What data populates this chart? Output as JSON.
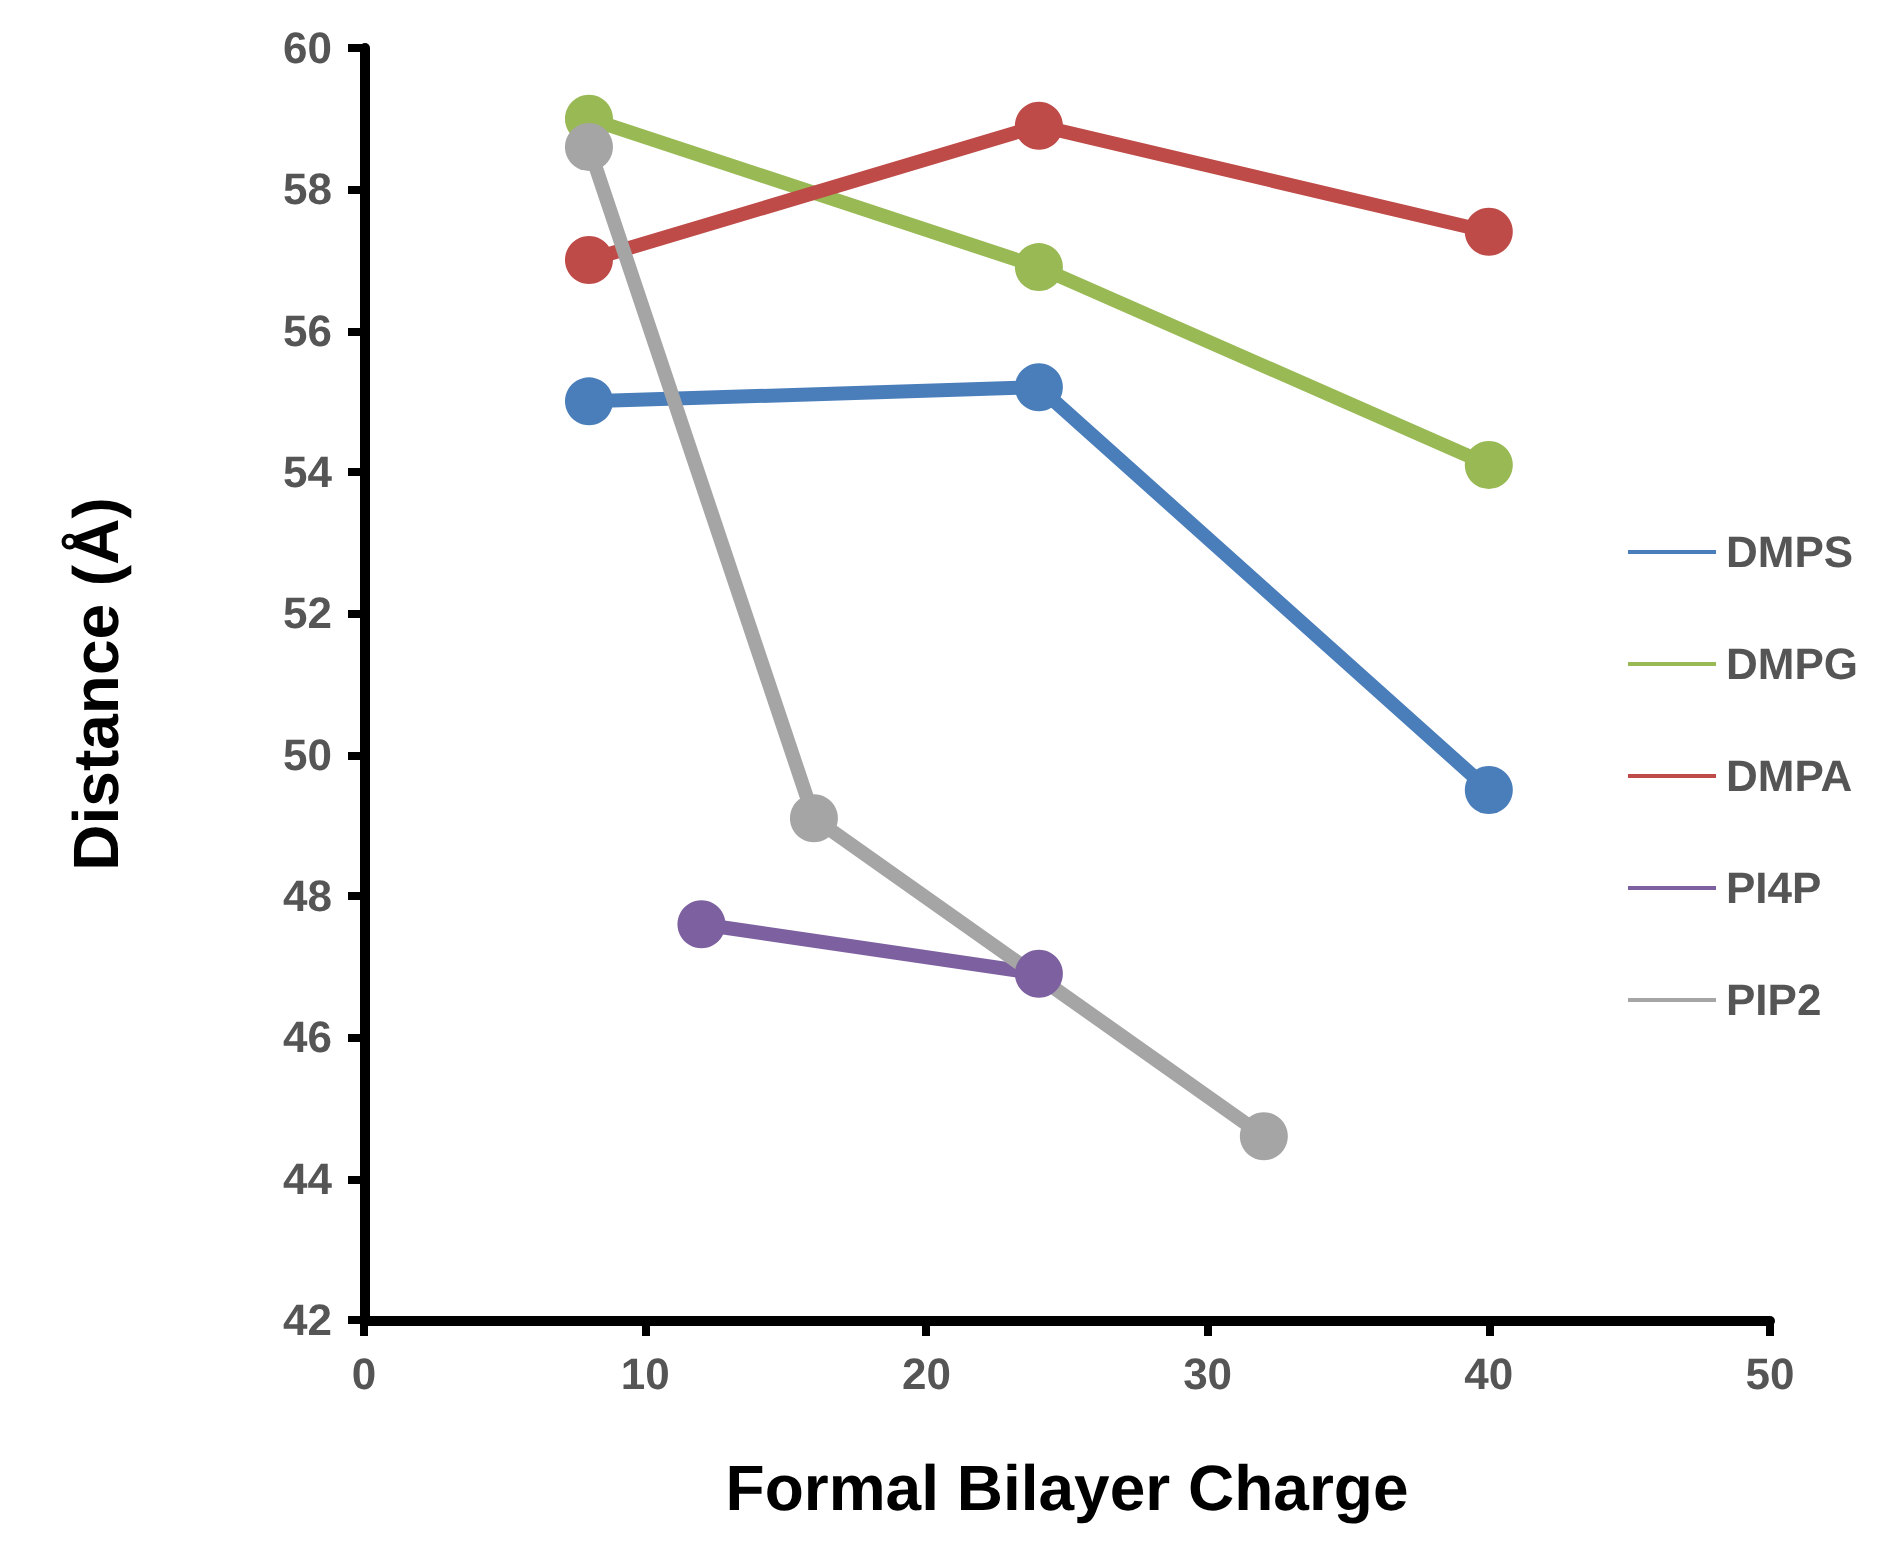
{
  "chart_data": {
    "type": "line",
    "xlabel": "Formal Bilayer Charge",
    "ylabel": "Distance (Å)",
    "xlim": [
      0,
      50
    ],
    "xticks": [
      0,
      10,
      20,
      30,
      40,
      50
    ],
    "ylim": [
      42,
      60
    ],
    "yticks": [
      42,
      44,
      46,
      48,
      50,
      52,
      54,
      56,
      58,
      60
    ],
    "grid": false,
    "legend": "right",
    "marker": "circle",
    "line_style": "solid",
    "series": [
      {
        "name": "DMPS",
        "color": "#4a7ebb",
        "x": [
          8,
          24,
          40
        ],
        "values": [
          55.0,
          55.2,
          49.5
        ]
      },
      {
        "name": "DMPG",
        "color": "#98b954",
        "x": [
          8,
          24,
          40
        ],
        "values": [
          59.0,
          56.9,
          54.1
        ]
      },
      {
        "name": "DMPA",
        "color": "#be4b48",
        "x": [
          8,
          24,
          40
        ],
        "values": [
          57.0,
          58.9,
          57.4
        ]
      },
      {
        "name": "PI4P",
        "color": "#7d60a0",
        "x": [
          12,
          24
        ],
        "values": [
          47.6,
          46.9
        ]
      },
      {
        "name": "PIP2",
        "color": "#a5a5a5",
        "x": [
          8,
          16,
          32
        ],
        "values": [
          58.6,
          49.1,
          44.6
        ]
      }
    ]
  }
}
